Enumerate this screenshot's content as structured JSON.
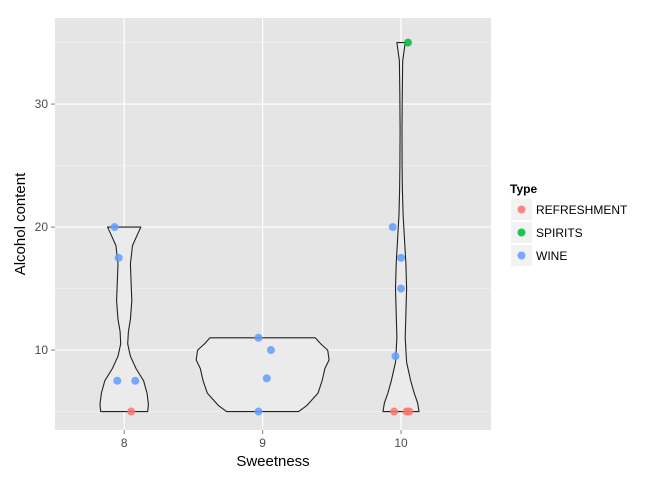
{
  "chart_data": {
    "type": "scatter",
    "subtype": "violin-with-jitter",
    "title": "",
    "xlabel": "Sweetness",
    "ylabel": "Alcohol content",
    "categories": [
      "8",
      "9",
      "10"
    ],
    "ylim": [
      3.5,
      37
    ],
    "yticks": [
      10,
      20,
      30
    ],
    "grid": true,
    "legend": {
      "title": "Type",
      "position": "right",
      "entries": [
        {
          "name": "REFRESHMENT",
          "color": "#F8766D"
        },
        {
          "name": "SPIRITS",
          "color": "#00BA38"
        },
        {
          "name": "WINE",
          "color": "#619CFF"
        }
      ]
    },
    "violins": [
      {
        "category": "8",
        "min": 5,
        "max": 20
      },
      {
        "category": "9",
        "min": 5,
        "max": 11
      },
      {
        "category": "10",
        "min": 5,
        "max": 35
      }
    ],
    "series": [
      {
        "name": "REFRESHMENT",
        "points": [
          {
            "x": 8.05,
            "y": 5
          },
          {
            "x": 9.95,
            "y": 5
          },
          {
            "x": 10.04,
            "y": 5
          },
          {
            "x": 10.06,
            "y": 5
          }
        ]
      },
      {
        "name": "SPIRITS",
        "points": [
          {
            "x": 10.05,
            "y": 35
          }
        ]
      },
      {
        "name": "WINE",
        "points": [
          {
            "x": 7.93,
            "y": 20
          },
          {
            "x": 7.96,
            "y": 17.5
          },
          {
            "x": 7.95,
            "y": 7.5
          },
          {
            "x": 8.08,
            "y": 7.5
          },
          {
            "x": 8.97,
            "y": 11
          },
          {
            "x": 9.06,
            "y": 10
          },
          {
            "x": 9.03,
            "y": 7.7
          },
          {
            "x": 8.97,
            "y": 5
          },
          {
            "x": 9.94,
            "y": 20
          },
          {
            "x": 10.0,
            "y": 17.5
          },
          {
            "x": 10.0,
            "y": 15
          },
          {
            "x": 9.96,
            "y": 9.5
          }
        ]
      }
    ]
  }
}
